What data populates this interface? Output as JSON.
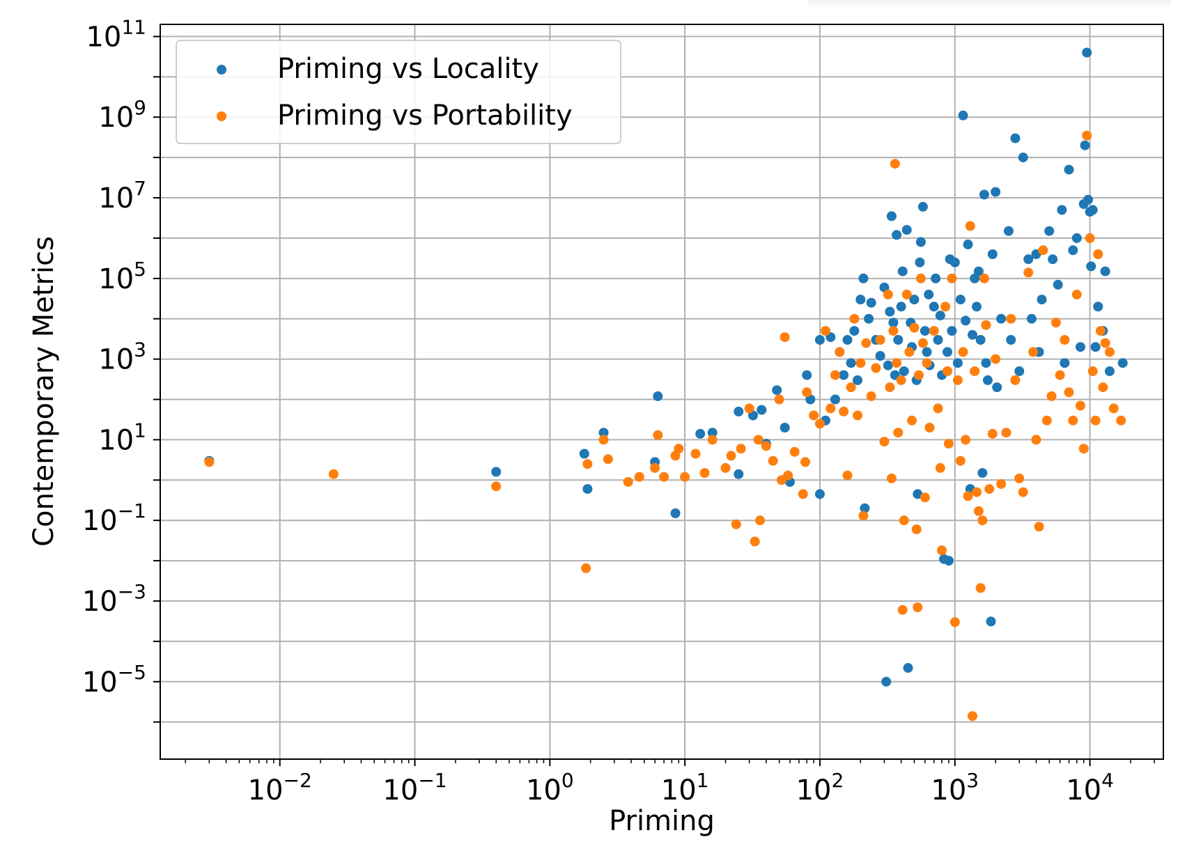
{
  "chart_data": {
    "type": "scatter",
    "xlabel": "Priming",
    "ylabel": "Contemporary Metrics",
    "xscale": "log",
    "yscale": "log",
    "xlim": [
      0.0013,
      35000
    ],
    "ylim": [
      1.2e-07,
      200000000000.0
    ],
    "x_tick_labels": [
      {
        "value": 0.01,
        "base": "10",
        "exp": "−2"
      },
      {
        "value": 0.1,
        "base": "10",
        "exp": "−1"
      },
      {
        "value": 1,
        "base": "10",
        "exp": "0"
      },
      {
        "value": 10,
        "base": "10",
        "exp": "1"
      },
      {
        "value": 100,
        "base": "10",
        "exp": "2"
      },
      {
        "value": 1000,
        "base": "10",
        "exp": "3"
      },
      {
        "value": 10000,
        "base": "10",
        "exp": "4"
      }
    ],
    "y_tick_labels": [
      {
        "value": 1e-05,
        "base": "10",
        "exp": "−5"
      },
      {
        "value": 0.001,
        "base": "10",
        "exp": "−3"
      },
      {
        "value": 0.1,
        "base": "10",
        "exp": "−1"
      },
      {
        "value": 10.0,
        "base": "10",
        "exp": "1"
      },
      {
        "value": 1000.0,
        "base": "10",
        "exp": "3"
      },
      {
        "value": 100000.0,
        "base": "10",
        "exp": "5"
      },
      {
        "value": 10000000.0,
        "base": "10",
        "exp": "7"
      },
      {
        "value": 1000000000.0,
        "base": "10",
        "exp": "9"
      },
      {
        "value": 100000000000.0,
        "base": "10",
        "exp": "11"
      }
    ],
    "grid": true,
    "legend_position": "top-left",
    "series": [
      {
        "name": "Priming vs Locality",
        "color": "#1f77b4",
        "points": [
          [
            0.003,
            3
          ],
          [
            0.4,
            1.6
          ],
          [
            1.8,
            4.5
          ],
          [
            1.9,
            0.6
          ],
          [
            2.5,
            15
          ],
          [
            8.5,
            0.15
          ],
          [
            6.3,
            120
          ],
          [
            6,
            2.8
          ],
          [
            13,
            14
          ],
          [
            16,
            15
          ],
          [
            25,
            50
          ],
          [
            25,
            1.4
          ],
          [
            32,
            40
          ],
          [
            37,
            55
          ],
          [
            40,
            8
          ],
          [
            48,
            170
          ],
          [
            55,
            20
          ],
          [
            60,
            0.9
          ],
          [
            80,
            400
          ],
          [
            85,
            100
          ],
          [
            100,
            0.45
          ],
          [
            100,
            3000
          ],
          [
            110,
            30
          ],
          [
            120,
            3500
          ],
          [
            130,
            100
          ],
          [
            140,
            1500
          ],
          [
            150,
            400
          ],
          [
            160,
            3000
          ],
          [
            170,
            800
          ],
          [
            180,
            5000
          ],
          [
            190,
            300
          ],
          [
            200,
            30000
          ],
          [
            210,
            100000
          ],
          [
            215,
            0.2
          ],
          [
            230,
            10000
          ],
          [
            240,
            25000
          ],
          [
            260,
            3000
          ],
          [
            280,
            1200
          ],
          [
            300,
            60000
          ],
          [
            310,
            1e-05
          ],
          [
            320,
            700
          ],
          [
            330,
            15000
          ],
          [
            340,
            3500000
          ],
          [
            350,
            8000
          ],
          [
            360,
            400
          ],
          [
            370,
            1200000
          ],
          [
            380,
            3000
          ],
          [
            400,
            20000
          ],
          [
            410,
            150000
          ],
          [
            420,
            500
          ],
          [
            440,
            1600000
          ],
          [
            450,
            2.2e-05
          ],
          [
            470,
            8000
          ],
          [
            480,
            2000
          ],
          [
            500,
            30000
          ],
          [
            520,
            300
          ],
          [
            530,
            0.45
          ],
          [
            550,
            250000
          ],
          [
            560,
            800000
          ],
          [
            580,
            6000000
          ],
          [
            600,
            5000
          ],
          [
            620,
            1500
          ],
          [
            640,
            40000
          ],
          [
            650,
            700
          ],
          [
            700,
            20000
          ],
          [
            720,
            100000
          ],
          [
            750,
            3000
          ],
          [
            780,
            12000
          ],
          [
            800,
            400
          ],
          [
            830,
            0.011
          ],
          [
            880,
            1500
          ],
          [
            900,
            0.01
          ],
          [
            920,
            300000
          ],
          [
            950,
            5000
          ],
          [
            1000,
            250000
          ],
          [
            1050,
            800
          ],
          [
            1100,
            30000
          ],
          [
            1150,
            1100000000.0
          ],
          [
            1200,
            9000
          ],
          [
            1250,
            700000
          ],
          [
            1300,
            0.6
          ],
          [
            1350,
            4000
          ],
          [
            1400,
            100000
          ],
          [
            1450,
            20000
          ],
          [
            1500,
            150000
          ],
          [
            1550,
            3000
          ],
          [
            1600,
            1.5
          ],
          [
            1650,
            12000000
          ],
          [
            1700,
            800
          ],
          [
            1750,
            300
          ],
          [
            1850,
            0.00031
          ],
          [
            1900,
            400000
          ],
          [
            2000,
            14000000
          ],
          [
            2050,
            200
          ],
          [
            2200,
            10000
          ],
          [
            2500,
            1500000
          ],
          [
            2600,
            3000
          ],
          [
            2800,
            300000000.0
          ],
          [
            3000,
            500
          ],
          [
            3200,
            100000000
          ],
          [
            3500,
            300000
          ],
          [
            3700,
            10000
          ],
          [
            4000,
            400000
          ],
          [
            4200,
            1500
          ],
          [
            4400,
            30000
          ],
          [
            5000,
            1500000
          ],
          [
            5300,
            300000
          ],
          [
            5800,
            70000
          ],
          [
            6200,
            5000000
          ],
          [
            6500,
            800
          ],
          [
            7000,
            50000000
          ],
          [
            7500,
            500000
          ],
          [
            8000,
            1000000
          ],
          [
            8500,
            2000
          ],
          [
            9000,
            7000000
          ],
          [
            9200,
            200000000
          ],
          [
            9500,
            40000000000
          ],
          [
            9700,
            9000000
          ],
          [
            10000,
            4500000
          ],
          [
            10200,
            200000
          ],
          [
            10500,
            5000000
          ],
          [
            11000,
            2000
          ],
          [
            11500,
            20000
          ],
          [
            12500,
            5000
          ],
          [
            13000,
            150000
          ],
          [
            14000,
            500
          ],
          [
            17500,
            800
          ]
        ]
      },
      {
        "name": "Priming vs Portability",
        "color": "#ff7f0e",
        "points": [
          [
            0.003,
            2.8
          ],
          [
            0.025,
            1.4
          ],
          [
            0.4,
            0.7
          ],
          [
            1.85,
            0.0065
          ],
          [
            1.9,
            2.5
          ],
          [
            2.5,
            10
          ],
          [
            2.7,
            3.3
          ],
          [
            3.8,
            0.9
          ],
          [
            4.6,
            1.2
          ],
          [
            6.3,
            13
          ],
          [
            6,
            2
          ],
          [
            7,
            1.2
          ],
          [
            8.5,
            4
          ],
          [
            9,
            6
          ],
          [
            10,
            1.2
          ],
          [
            12,
            4.5
          ],
          [
            14,
            1.5
          ],
          [
            16,
            10
          ],
          [
            20,
            2
          ],
          [
            22,
            4
          ],
          [
            24,
            0.08
          ],
          [
            26,
            6
          ],
          [
            30,
            60
          ],
          [
            33,
            0.03
          ],
          [
            35,
            10
          ],
          [
            36,
            0.1
          ],
          [
            40,
            7
          ],
          [
            45,
            3
          ],
          [
            50,
            100
          ],
          [
            52,
            1
          ],
          [
            55,
            3500
          ],
          [
            58,
            1.3
          ],
          [
            65,
            5
          ],
          [
            75,
            0.45
          ],
          [
            78,
            2.8
          ],
          [
            80,
            150
          ],
          [
            90,
            40
          ],
          [
            100,
            25
          ],
          [
            110,
            5000
          ],
          [
            120,
            60
          ],
          [
            130,
            400
          ],
          [
            140,
            1500
          ],
          [
            150,
            50
          ],
          [
            160,
            1.3
          ],
          [
            170,
            200
          ],
          [
            180,
            10000
          ],
          [
            190,
            40
          ],
          [
            200,
            800
          ],
          [
            210,
            0.13
          ],
          [
            220,
            2500
          ],
          [
            240,
            120
          ],
          [
            260,
            600
          ],
          [
            280,
            3000
          ],
          [
            300,
            9
          ],
          [
            320,
            40000
          ],
          [
            330,
            200
          ],
          [
            340,
            1.1
          ],
          [
            350,
            5000
          ],
          [
            360,
            70000000
          ],
          [
            370,
            800
          ],
          [
            380,
            15
          ],
          [
            400,
            300
          ],
          [
            410,
            0.0006
          ],
          [
            420,
            0.1
          ],
          [
            440,
            40000
          ],
          [
            460,
            1500
          ],
          [
            480,
            30
          ],
          [
            500,
            6000
          ],
          [
            520,
            0.06
          ],
          [
            530,
            0.0007
          ],
          [
            540,
            400
          ],
          [
            560,
            100000
          ],
          [
            580,
            2500
          ],
          [
            600,
            0.37
          ],
          [
            620,
            800
          ],
          [
            650,
            20
          ],
          [
            700,
            5000
          ],
          [
            750,
            60
          ],
          [
            780,
            2
          ],
          [
            800,
            0.018
          ],
          [
            850,
            20000
          ],
          [
            880,
            500
          ],
          [
            900,
            8
          ],
          [
            950,
            100000
          ],
          [
            1000,
            0.0003
          ],
          [
            1050,
            300
          ],
          [
            1100,
            3
          ],
          [
            1150,
            1500
          ],
          [
            1200,
            10
          ],
          [
            1250,
            0.4
          ],
          [
            1300,
            2000000
          ],
          [
            1350,
            1.4e-06
          ],
          [
            1400,
            500
          ],
          [
            1450,
            0.5
          ],
          [
            1500,
            0.17
          ],
          [
            1550,
            0.0021
          ],
          [
            1600,
            0.1
          ],
          [
            1650,
            100000
          ],
          [
            1700,
            7000
          ],
          [
            1800,
            0.6
          ],
          [
            1900,
            14
          ],
          [
            2000,
            1000
          ],
          [
            2200,
            0.8
          ],
          [
            2400,
            15
          ],
          [
            2600,
            10000
          ],
          [
            2800,
            300
          ],
          [
            3000,
            1.1
          ],
          [
            3200,
            0.5
          ],
          [
            3500,
            140000
          ],
          [
            3800,
            1500
          ],
          [
            4000,
            10
          ],
          [
            4200,
            0.07
          ],
          [
            4500,
            500000
          ],
          [
            4800,
            30
          ],
          [
            5200,
            120
          ],
          [
            5600,
            8000
          ],
          [
            6000,
            400
          ],
          [
            6500,
            3000
          ],
          [
            7000,
            150
          ],
          [
            7500,
            30
          ],
          [
            8000,
            40000
          ],
          [
            8500,
            70
          ],
          [
            9000,
            6
          ],
          [
            9500,
            350000000
          ],
          [
            10000,
            1000000
          ],
          [
            10500,
            500
          ],
          [
            11000,
            30
          ],
          [
            11500,
            400000
          ],
          [
            12000,
            5000
          ],
          [
            12500,
            200
          ],
          [
            13000,
            2500
          ],
          [
            14000,
            1500
          ],
          [
            15000,
            60
          ],
          [
            17000,
            30
          ]
        ]
      }
    ]
  }
}
